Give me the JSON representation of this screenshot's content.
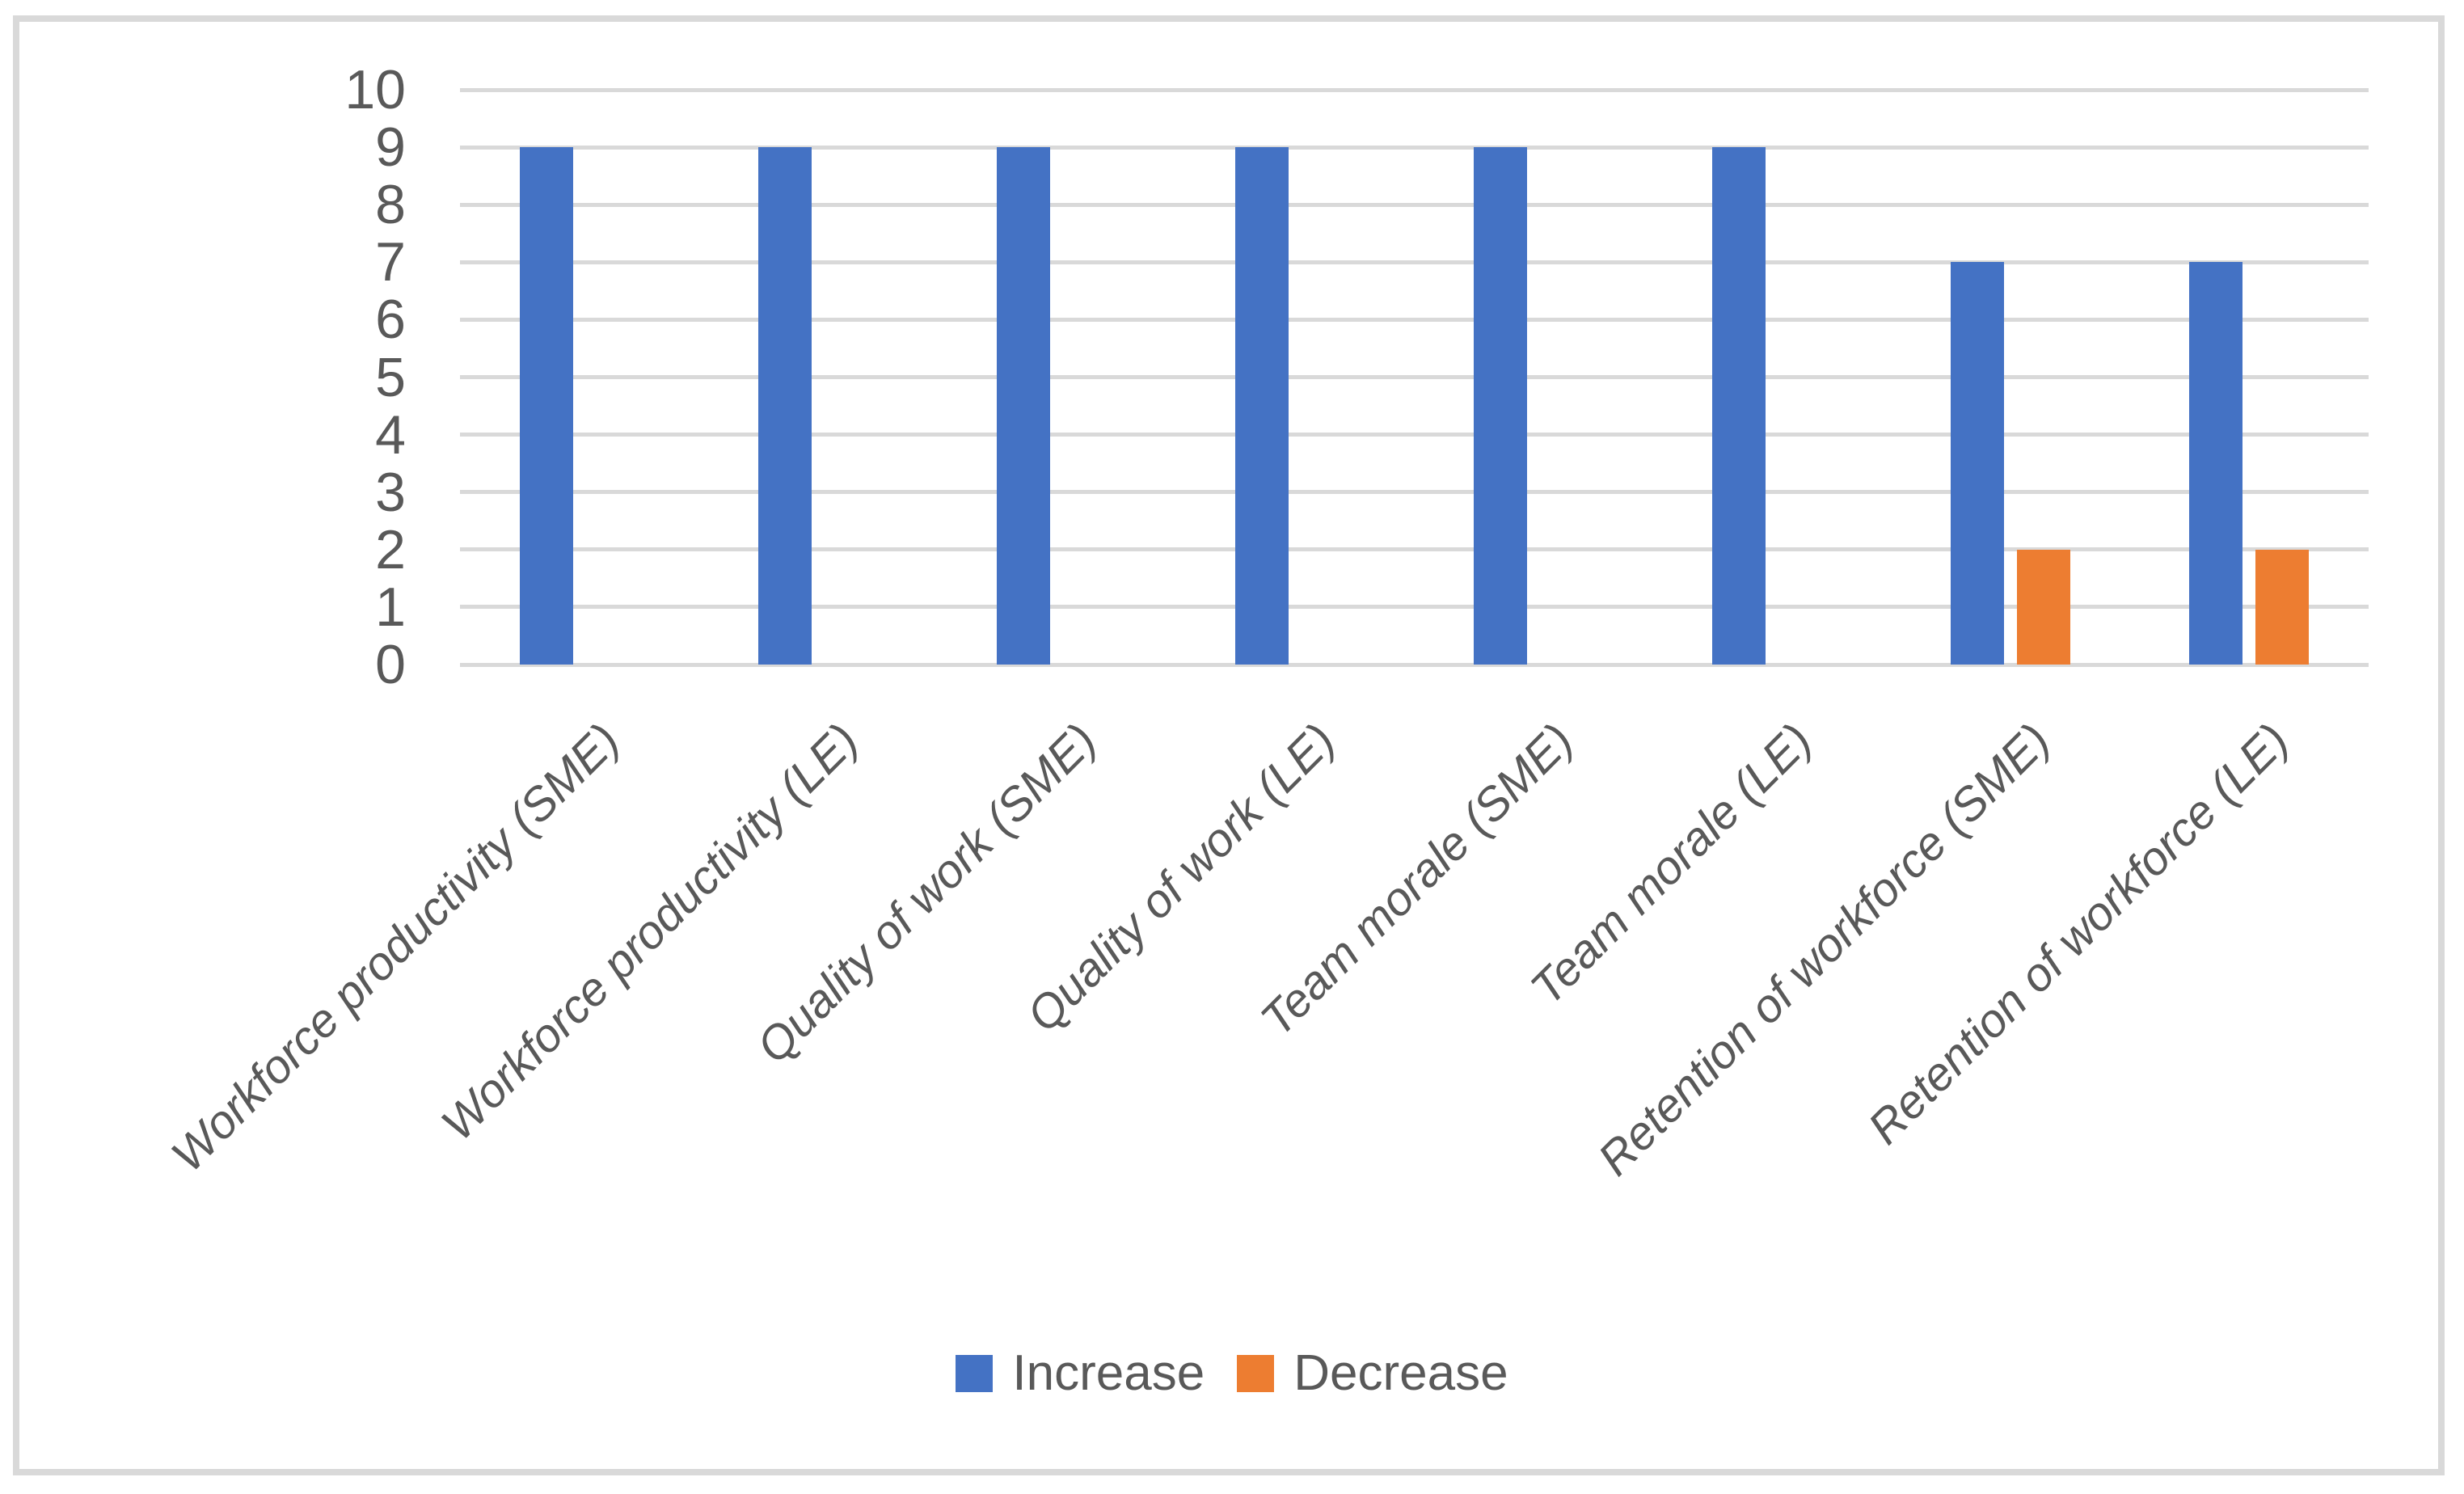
{
  "chart_data": {
    "type": "bar",
    "title": "",
    "xlabel": "",
    "ylabel": "",
    "categories": [
      "Workforce productivity (SME)",
      "Workforce productivity (LE)",
      "Quality of work (SME)",
      "Quality of work (LE)",
      "Team morale (SME)",
      "Team morale (LE)",
      "Retention of workforce (SME)",
      "Retention of workforce (LE)"
    ],
    "series": [
      {
        "name": "Increase",
        "color": "#4472C4",
        "values": [
          9,
          9,
          9,
          9,
          9,
          9,
          7,
          7
        ]
      },
      {
        "name": "Decrease",
        "color": "#ED7D31",
        "values": [
          0,
          0,
          0,
          0,
          0,
          0,
          2,
          2
        ]
      }
    ],
    "ylim": [
      0,
      10
    ],
    "yticks": [
      0,
      1,
      2,
      3,
      4,
      5,
      6,
      7,
      8,
      9,
      10
    ],
    "grid": true,
    "legend_position": "bottom"
  },
  "colors": {
    "gridline": "#D9D9D9",
    "border": "#D9D9D9",
    "axis_text": "#595959",
    "background": "#FFFFFF"
  }
}
